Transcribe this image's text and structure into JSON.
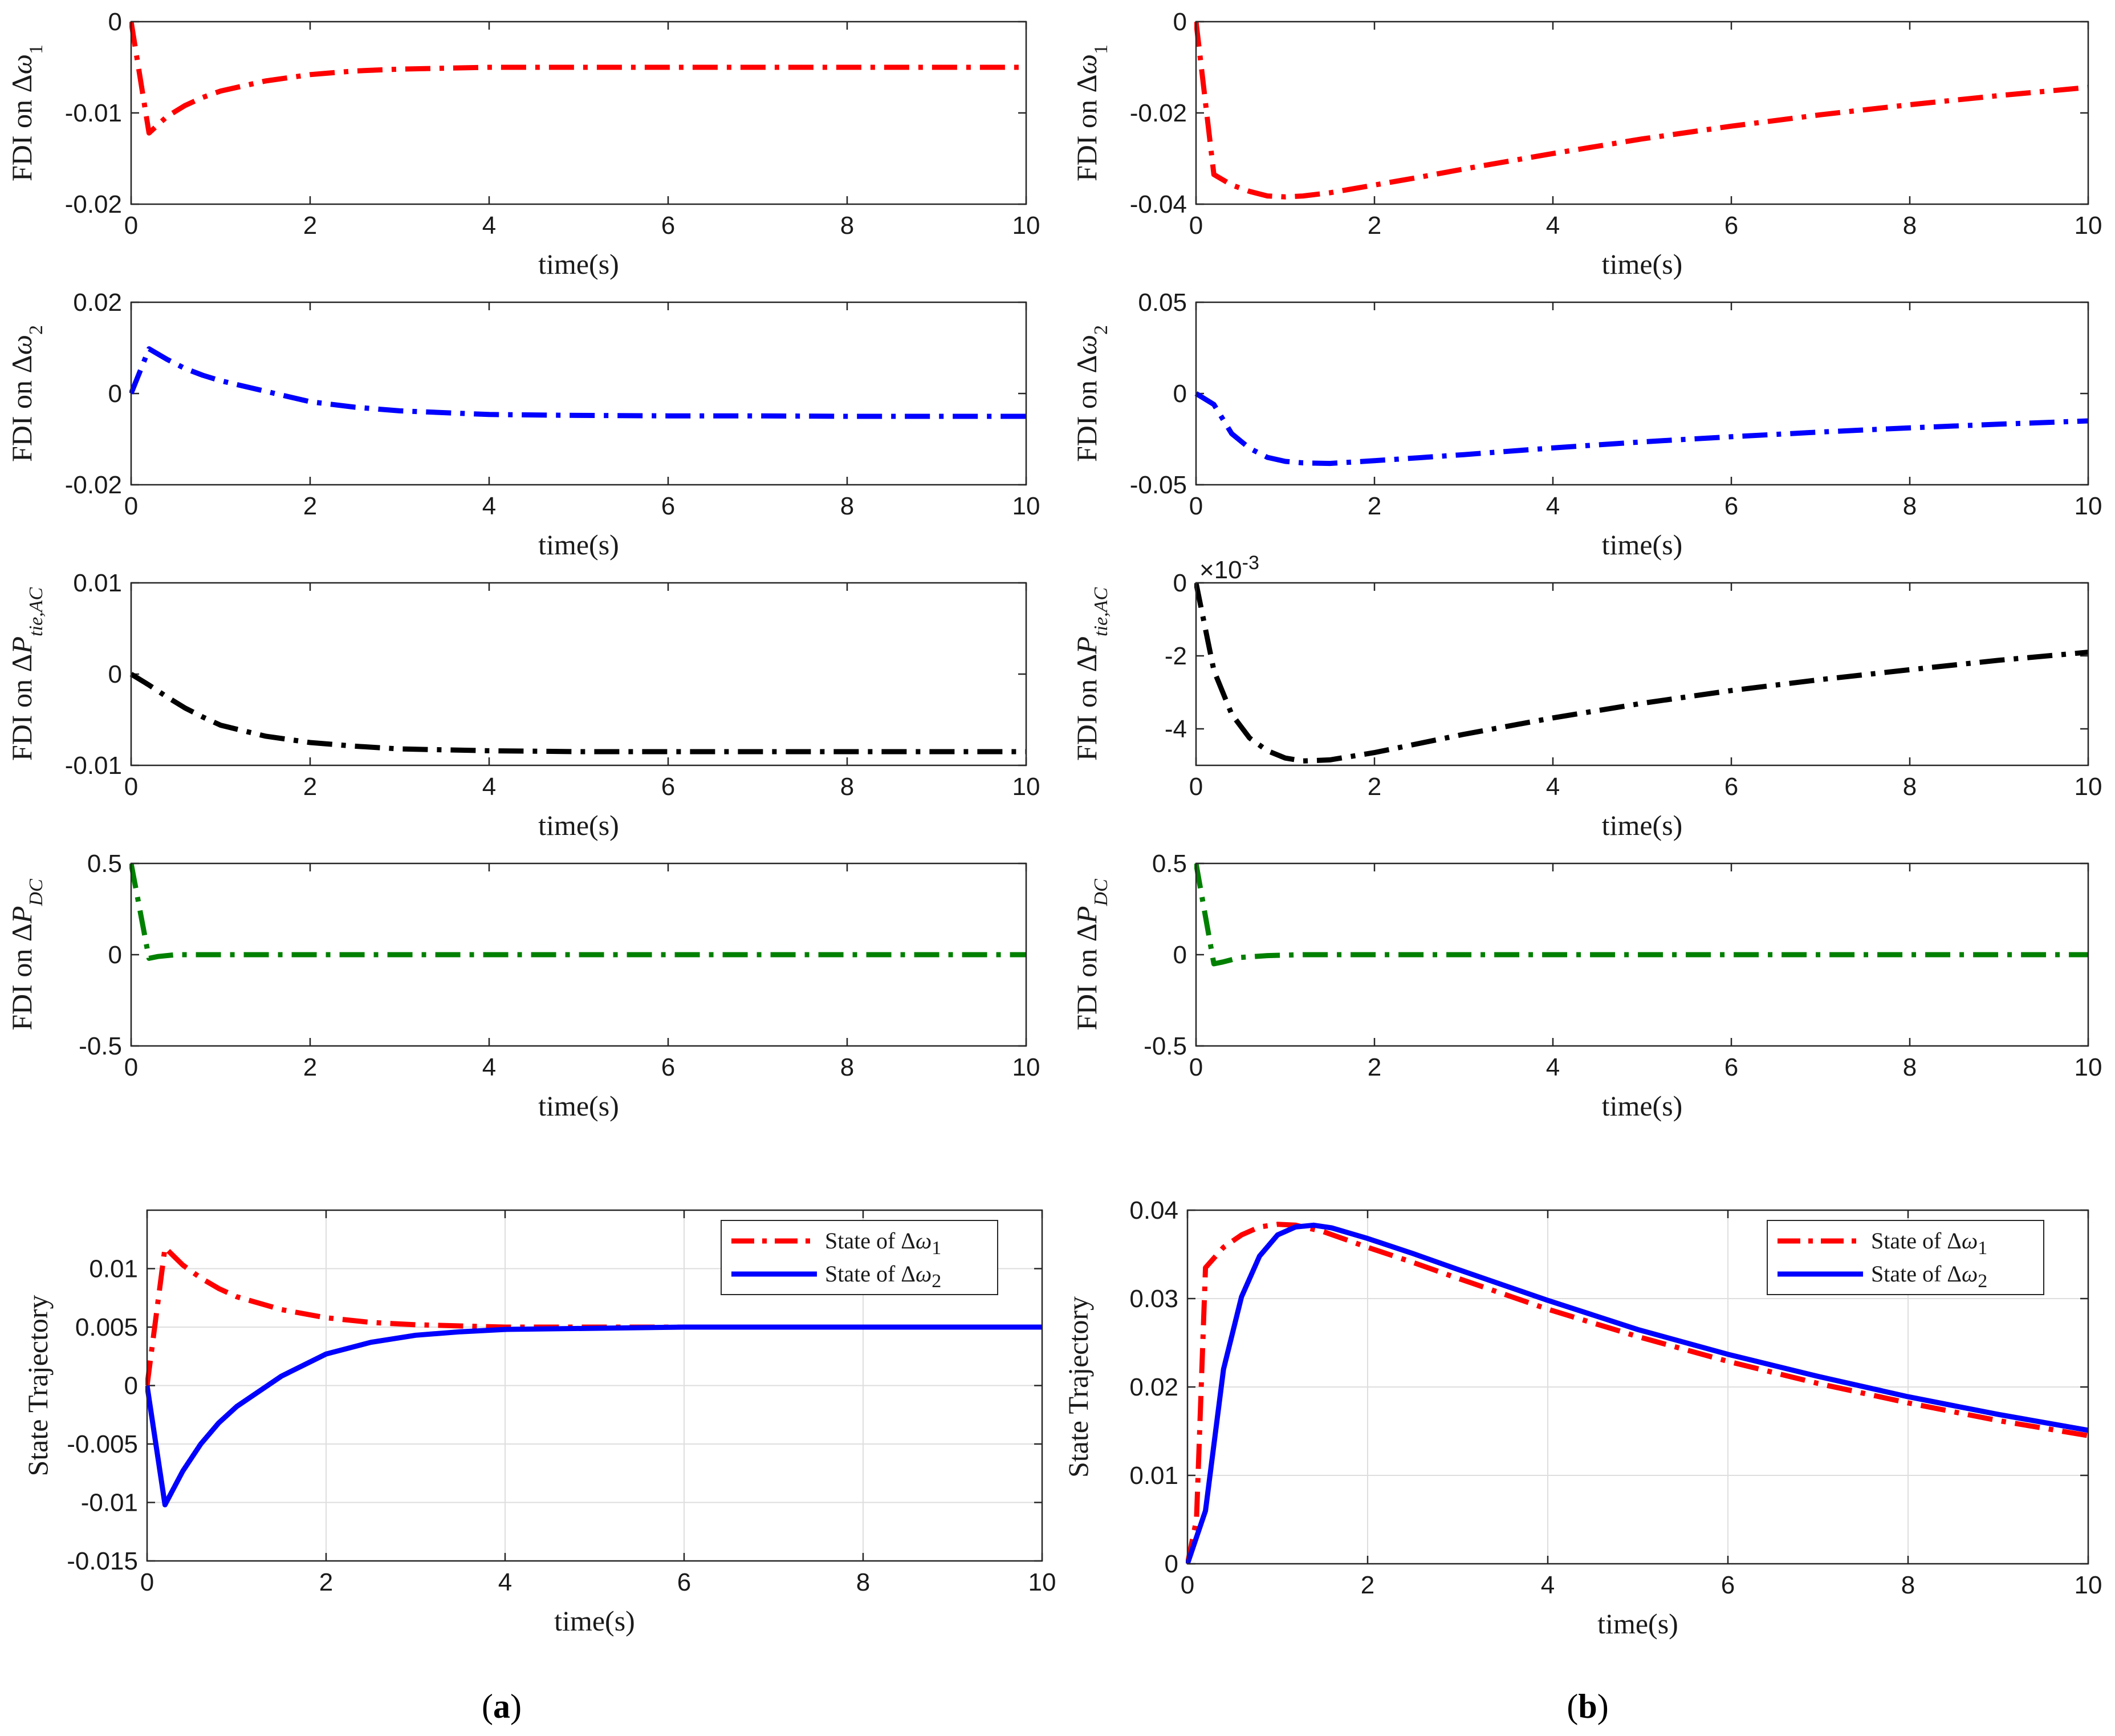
{
  "captions": {
    "a_open": "(",
    "a_letter": "a",
    "a_close": ")",
    "b_open": "(",
    "b_letter": "b",
    "b_close": ")"
  },
  "chart_data": [
    {
      "id": "a1",
      "type": "line",
      "column": "a",
      "row": 1,
      "xlabel": "time(s)",
      "ylabel": {
        "pre": "FDI on Δ",
        "sym": "ω",
        "sub": "1",
        "subItalic": false
      },
      "xlim": [
        0,
        10
      ],
      "ylim": [
        -0.02,
        0
      ],
      "xticks": [
        0,
        2,
        4,
        6,
        8,
        10
      ],
      "xticklabels": [
        "0",
        "2",
        "4",
        "6",
        "8",
        "10"
      ],
      "yticks": [
        -0.02,
        -0.01,
        0
      ],
      "yticklabels": [
        "-0.02",
        "-0.01",
        "0"
      ],
      "grid": false,
      "series": [
        {
          "name": "FDI on Δω1",
          "color": "#ff0000",
          "dash": "dashdot",
          "x": [
            0,
            0.2,
            0.4,
            0.6,
            0.8,
            1,
            1.5,
            2,
            2.5,
            3,
            4,
            5,
            6,
            7,
            8,
            9,
            10
          ],
          "y": [
            0,
            -0.0122,
            -0.0104,
            -0.0092,
            -0.0083,
            -0.0076,
            -0.0065,
            -0.0058,
            -0.0054,
            -0.0052,
            -0.005,
            -0.005,
            -0.005,
            -0.005,
            -0.005,
            -0.005,
            -0.005
          ]
        }
      ]
    },
    {
      "id": "a2",
      "type": "line",
      "column": "a",
      "row": 2,
      "xlabel": "time(s)",
      "ylabel": {
        "pre": "FDI on Δ",
        "sym": "ω",
        "sub": "2",
        "subItalic": false
      },
      "xlim": [
        0,
        10
      ],
      "ylim": [
        -0.02,
        0.02
      ],
      "xticks": [
        0,
        2,
        4,
        6,
        8,
        10
      ],
      "xticklabels": [
        "0",
        "2",
        "4",
        "6",
        "8",
        "10"
      ],
      "yticks": [
        -0.02,
        0,
        0.02
      ],
      "yticklabels": [
        "-0.02",
        "0",
        "0.02"
      ],
      "grid": false,
      "series": [
        {
          "name": "FDI on Δω2",
          "color": "#0000ff",
          "dash": "dashdot",
          "x": [
            0,
            0.2,
            0.4,
            0.6,
            0.8,
            1,
            1.5,
            2,
            2.5,
            3,
            4,
            5,
            6,
            7,
            8,
            9,
            10
          ],
          "y": [
            0,
            0.0098,
            0.0075,
            0.0055,
            0.004,
            0.0028,
            0.0005,
            -0.0018,
            -0.003,
            -0.0038,
            -0.0046,
            -0.0048,
            -0.0049,
            -0.0049,
            -0.005,
            -0.005,
            -0.005
          ]
        }
      ]
    },
    {
      "id": "a3",
      "type": "line",
      "column": "a",
      "row": 3,
      "xlabel": "time(s)",
      "ylabel": {
        "pre": "FDI on Δ",
        "sym": "P",
        "sub": "tie,AC",
        "subItalic": true
      },
      "xlim": [
        0,
        10
      ],
      "ylim": [
        -0.01,
        0.01
      ],
      "xticks": [
        0,
        2,
        4,
        6,
        8,
        10
      ],
      "xticklabels": [
        "0",
        "2",
        "4",
        "6",
        "8",
        "10"
      ],
      "yticks": [
        -0.01,
        0,
        0.01
      ],
      "yticklabels": [
        "-0.01",
        "0",
        "0.01"
      ],
      "grid": false,
      "series": [
        {
          "name": "FDI on ΔPtie,AC",
          "color": "#000000",
          "dash": "dashdot",
          "x": [
            0,
            0.2,
            0.4,
            0.6,
            0.8,
            1,
            1.5,
            2,
            2.5,
            3,
            4,
            5,
            6,
            7,
            8,
            9,
            10
          ],
          "y": [
            0,
            -0.0012,
            -0.0025,
            -0.0037,
            -0.0047,
            -0.0056,
            -0.0068,
            -0.0075,
            -0.0079,
            -0.0082,
            -0.0084,
            -0.0085,
            -0.0085,
            -0.0085,
            -0.0085,
            -0.0085,
            -0.0085
          ]
        }
      ]
    },
    {
      "id": "a4",
      "type": "line",
      "column": "a",
      "row": 4,
      "xlabel": "time(s)",
      "ylabel": {
        "pre": "FDI on Δ",
        "sym": "P",
        "sub": "DC",
        "subItalic": true
      },
      "xlim": [
        0,
        10
      ],
      "ylim": [
        -0.5,
        0.5
      ],
      "xticks": [
        0,
        2,
        4,
        6,
        8,
        10
      ],
      "xticklabels": [
        "0",
        "2",
        "4",
        "6",
        "8",
        "10"
      ],
      "yticks": [
        -0.5,
        0,
        0.5
      ],
      "yticklabels": [
        "-0.5",
        "0",
        "0.5"
      ],
      "grid": false,
      "series": [
        {
          "name": "FDI on ΔPDC",
          "color": "#008000",
          "dash": "dashdot",
          "x": [
            0,
            0.2,
            0.3,
            0.5,
            1,
            2,
            4,
            6,
            8,
            10
          ],
          "y": [
            0.5,
            -0.02,
            -0.01,
            0,
            0,
            0,
            0,
            0,
            0,
            0
          ]
        }
      ]
    },
    {
      "id": "b1",
      "type": "line",
      "column": "b",
      "row": 1,
      "xlabel": "time(s)",
      "ylabel": {
        "pre": "FDI on Δ",
        "sym": "ω",
        "sub": "1",
        "subItalic": false
      },
      "xlim": [
        0,
        10
      ],
      "ylim": [
        -0.04,
        0
      ],
      "xticks": [
        0,
        2,
        4,
        6,
        8,
        10
      ],
      "xticklabels": [
        "0",
        "2",
        "4",
        "6",
        "8",
        "10"
      ],
      "yticks": [
        -0.04,
        -0.02,
        0
      ],
      "yticklabels": [
        "-0.04",
        "-0.02",
        "0"
      ],
      "grid": false,
      "series": [
        {
          "name": "FDI on Δω1",
          "color": "#ff0000",
          "dash": "dashdot",
          "x": [
            0,
            0.2,
            0.4,
            0.6,
            0.8,
            1,
            1.2,
            1.5,
            2,
            2.5,
            3,
            4,
            5,
            6,
            7,
            8,
            9,
            10
          ],
          "y": [
            0,
            -0.0335,
            -0.0358,
            -0.0372,
            -0.0382,
            -0.0384,
            -0.0382,
            -0.0375,
            -0.0358,
            -0.0341,
            -0.0323,
            -0.0289,
            -0.0257,
            -0.0229,
            -0.0204,
            -0.0182,
            -0.0162,
            -0.0144
          ]
        }
      ]
    },
    {
      "id": "b2",
      "type": "line",
      "column": "b",
      "row": 2,
      "xlabel": "time(s)",
      "ylabel": {
        "pre": "FDI on Δ",
        "sym": "ω",
        "sub": "2",
        "subItalic": false
      },
      "xlim": [
        0,
        10
      ],
      "ylim": [
        -0.05,
        0.05
      ],
      "xticks": [
        0,
        2,
        4,
        6,
        8,
        10
      ],
      "xticklabels": [
        "0",
        "2",
        "4",
        "6",
        "8",
        "10"
      ],
      "yticks": [
        -0.05,
        0,
        0.05
      ],
      "yticklabels": [
        "-0.05",
        "0",
        "0.05"
      ],
      "grid": false,
      "series": [
        {
          "name": "FDI on Δω2",
          "color": "#0000ff",
          "dash": "dashdot",
          "x": [
            0,
            0.2,
            0.4,
            0.6,
            0.8,
            1,
            1.2,
            1.5,
            2,
            2.5,
            3,
            4,
            5,
            6,
            7,
            8,
            9,
            10
          ],
          "y": [
            0,
            -0.006,
            -0.022,
            -0.03,
            -0.035,
            -0.0372,
            -0.038,
            -0.0383,
            -0.0368,
            -0.0352,
            -0.0335,
            -0.0298,
            -0.0265,
            -0.0237,
            -0.0211,
            -0.0188,
            -0.0168,
            -0.015
          ]
        }
      ]
    },
    {
      "id": "b3",
      "type": "line",
      "column": "b",
      "row": 3,
      "xlabel": "time(s)",
      "ylabel": {
        "pre": "FDI on Δ",
        "sym": "P",
        "sub": "tie,AC",
        "subItalic": true
      },
      "exponent": "×10",
      "exponentPower": "-3",
      "xlim": [
        0,
        10
      ],
      "ylim": [
        -5,
        0
      ],
      "xticks": [
        0,
        2,
        4,
        6,
        8,
        10
      ],
      "xticklabels": [
        "0",
        "2",
        "4",
        "6",
        "8",
        "10"
      ],
      "yticks": [
        -4,
        -2,
        0
      ],
      "yticklabels": [
        "-4",
        "-2",
        "0"
      ],
      "grid": false,
      "series": [
        {
          "name": "FDI on ΔPtie,AC",
          "color": "#000000",
          "dash": "dashdot",
          "x": [
            0,
            0.2,
            0.4,
            0.6,
            0.8,
            1,
            1.2,
            1.5,
            2,
            2.5,
            3,
            4,
            5,
            6,
            7,
            8,
            9,
            10
          ],
          "y": [
            0,
            -2.4,
            -3.6,
            -4.25,
            -4.6,
            -4.8,
            -4.88,
            -4.85,
            -4.65,
            -4.4,
            -4.15,
            -3.7,
            -3.3,
            -2.95,
            -2.65,
            -2.38,
            -2.12,
            -1.9
          ]
        }
      ]
    },
    {
      "id": "b4",
      "type": "line",
      "column": "b",
      "row": 4,
      "xlabel": "time(s)",
      "ylabel": {
        "pre": "FDI on Δ",
        "sym": "P",
        "sub": "DC",
        "subItalic": true
      },
      "xlim": [
        0,
        10
      ],
      "ylim": [
        -0.5,
        0.5
      ],
      "xticks": [
        0,
        2,
        4,
        6,
        8,
        10
      ],
      "xticklabels": [
        "0",
        "2",
        "4",
        "6",
        "8",
        "10"
      ],
      "yticks": [
        -0.5,
        0,
        0.5
      ],
      "yticklabels": [
        "-0.5",
        "0",
        "0.5"
      ],
      "grid": false,
      "series": [
        {
          "name": "FDI on ΔPDC",
          "color": "#008000",
          "dash": "dashdot",
          "x": [
            0,
            0.2,
            0.3,
            0.5,
            0.8,
            1.2,
            2,
            4,
            6,
            8,
            10
          ],
          "y": [
            0.5,
            -0.05,
            -0.04,
            -0.015,
            -0.005,
            0,
            0,
            0,
            0,
            0,
            0
          ]
        }
      ]
    },
    {
      "id": "a5",
      "type": "line",
      "column": "a",
      "row": 5,
      "xlabel": "time(s)",
      "ylabel": {
        "pre": "State Trajectory",
        "sym": "",
        "sub": "",
        "subItalic": false
      },
      "xlim": [
        0,
        10
      ],
      "ylim": [
        -0.015,
        0.015
      ],
      "xticks": [
        0,
        2,
        4,
        6,
        8,
        10
      ],
      "xticklabels": [
        "0",
        "2",
        "4",
        "6",
        "8",
        "10"
      ],
      "yticks": [
        -0.015,
        -0.01,
        -0.005,
        0,
        0.005,
        0.01
      ],
      "yticklabels": [
        "-0.015",
        "-0.01",
        "-0.005",
        "0",
        "0.005",
        "0.01"
      ],
      "grid": true,
      "legend": {
        "placement": "top-right",
        "entries": [
          {
            "pre": "State of Δ",
            "sym": "ω",
            "sub": "1"
          },
          {
            "pre": "State of Δ",
            "sym": "ω",
            "sub": "2"
          }
        ]
      },
      "series": [
        {
          "name": "State of Δω1",
          "color": "#ff0000",
          "dash": "dashdot",
          "x": [
            0,
            0.2,
            0.4,
            0.6,
            0.8,
            1,
            1.5,
            2,
            2.5,
            3,
            4,
            5,
            6,
            7,
            8,
            9,
            10
          ],
          "y": [
            0,
            0.0118,
            0.0103,
            0.0092,
            0.0083,
            0.0076,
            0.0065,
            0.0058,
            0.0054,
            0.0052,
            0.005,
            0.005,
            0.005,
            0.005,
            0.005,
            0.005,
            0.005
          ]
        },
        {
          "name": "State of Δω2",
          "color": "#0000ff",
          "dash": "solid",
          "x": [
            0,
            0.2,
            0.4,
            0.6,
            0.8,
            1,
            1.5,
            2,
            2.5,
            3,
            3.5,
            4,
            5,
            6,
            7,
            8,
            9,
            10
          ],
          "y": [
            0,
            -0.0102,
            -0.0073,
            -0.005,
            -0.0032,
            -0.0018,
            0.0008,
            0.0027,
            0.0037,
            0.0043,
            0.0046,
            0.0048,
            0.0049,
            0.005,
            0.005,
            0.005,
            0.005,
            0.005
          ]
        }
      ]
    },
    {
      "id": "b5",
      "type": "line",
      "column": "b",
      "row": 5,
      "xlabel": "time(s)",
      "ylabel": {
        "pre": "State Trajectory",
        "sym": "",
        "sub": "",
        "subItalic": false
      },
      "xlim": [
        0,
        10
      ],
      "ylim": [
        0,
        0.04
      ],
      "xticks": [
        0,
        2,
        4,
        6,
        8,
        10
      ],
      "xticklabels": [
        "0",
        "2",
        "4",
        "6",
        "8",
        "10"
      ],
      "yticks": [
        0,
        0.01,
        0.02,
        0.03,
        0.04
      ],
      "yticklabels": [
        "0",
        "0.01",
        "0.02",
        "0.03",
        "0.04"
      ],
      "grid": true,
      "legend": {
        "placement": "top-right",
        "entries": [
          {
            "pre": "State of Δ",
            "sym": "ω",
            "sub": "1"
          },
          {
            "pre": "State of Δ",
            "sym": "ω",
            "sub": "2"
          }
        ]
      },
      "series": [
        {
          "name": "State of Δω1",
          "color": "#ff0000",
          "dash": "dashdot",
          "x": [
            0,
            0.1,
            0.2,
            0.4,
            0.6,
            0.8,
            1,
            1.2,
            1.5,
            2,
            2.5,
            3,
            4,
            5,
            6,
            7,
            8,
            9,
            10
          ],
          "y": [
            0,
            0.005,
            0.0335,
            0.0358,
            0.0372,
            0.0381,
            0.0384,
            0.0383,
            0.0376,
            0.0358,
            0.0341,
            0.0323,
            0.0288,
            0.0257,
            0.0229,
            0.0204,
            0.0182,
            0.0162,
            0.0145
          ]
        },
        {
          "name": "State of Δω2",
          "color": "#0000ff",
          "dash": "solid",
          "x": [
            0,
            0.2,
            0.4,
            0.6,
            0.8,
            1,
            1.2,
            1.4,
            1.6,
            2,
            2.5,
            3,
            4,
            5,
            6,
            7,
            8,
            9,
            10
          ],
          "y": [
            0,
            0.006,
            0.022,
            0.0302,
            0.0348,
            0.0372,
            0.0381,
            0.0383,
            0.038,
            0.0368,
            0.0351,
            0.0333,
            0.0298,
            0.0265,
            0.0237,
            0.0212,
            0.0189,
            0.0169,
            0.0151
          ]
        }
      ]
    }
  ]
}
